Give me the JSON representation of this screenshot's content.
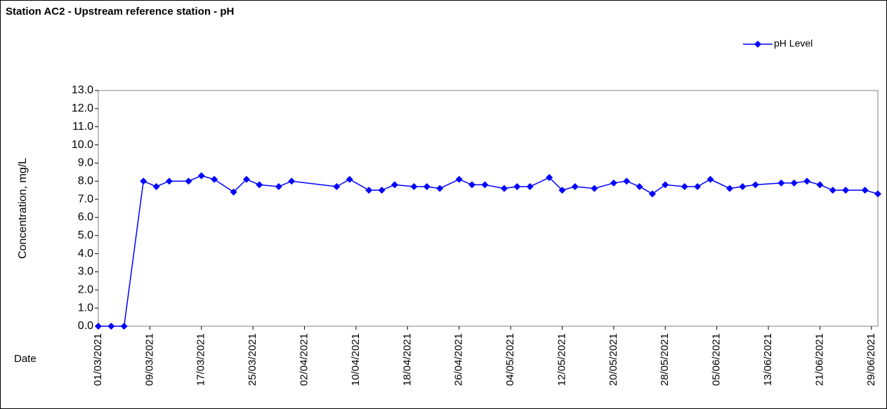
{
  "chart_data": {
    "type": "line",
    "title": "Station AC2 - Upstream reference station - pH",
    "x_label": "Date",
    "y_label": "Concentration, mg/L",
    "legend": "top-right",
    "series": [
      {
        "name": "pH Level",
        "color": "#0000ff",
        "values": [
          0,
          0,
          0,
          8.0,
          7.7,
          8.0,
          8.0,
          8.3,
          8.1,
          7.4,
          8.1,
          7.8,
          7.7,
          8.0,
          7.7,
          8.1,
          7.5,
          7.5,
          7.8,
          7.7,
          7.7,
          7.6,
          8.1,
          7.8,
          7.8,
          7.6,
          7.7,
          7.7,
          8.2,
          7.5,
          7.7,
          7.6,
          7.9,
          8.0,
          7.7,
          7.3,
          7.8,
          7.7,
          7.7,
          8.1,
          7.6,
          7.7,
          7.8,
          7.9,
          7.9,
          8.0,
          7.8,
          7.5,
          7.5,
          7.5,
          7.3
        ]
      }
    ],
    "x": [
      "01/03/2021",
      "03/03/2021",
      "05/03/2021",
      "08/03/2021",
      "10/03/2021",
      "12/03/2021",
      "15/03/2021",
      "17/03/2021",
      "19/03/2021",
      "22/03/2021",
      "24/03/2021",
      "26/03/2021",
      "29/03/2021",
      "31/03/2021",
      "07/04/2021",
      "09/04/2021",
      "12/04/2021",
      "14/04/2021",
      "16/04/2021",
      "19/04/2021",
      "21/04/2021",
      "23/04/2021",
      "26/04/2021",
      "28/04/2021",
      "30/04/2021",
      "03/05/2021",
      "05/05/2021",
      "07/05/2021",
      "10/05/2021",
      "12/05/2021",
      "14/05/2021",
      "17/05/2021",
      "20/05/2021",
      "22/05/2021",
      "24/05/2021",
      "26/05/2021",
      "28/05/2021",
      "31/05/2021",
      "02/06/2021",
      "04/06/2021",
      "07/06/2021",
      "09/06/2021",
      "11/06/2021",
      "15/06/2021",
      "17/06/2021",
      "19/06/2021",
      "21/06/2021",
      "23/06/2021",
      "25/06/2021",
      "28/06/2021",
      "30/06/2021"
    ],
    "xlim": [
      "01/03/2021",
      "30/06/2021"
    ],
    "xticks": [
      "01/03/2021",
      "09/03/2021",
      "17/03/2021",
      "25/03/2021",
      "02/04/2021",
      "10/04/2021",
      "18/04/2021",
      "26/04/2021",
      "04/05/2021",
      "12/05/2021",
      "20/05/2021",
      "28/05/2021",
      "05/06/2021",
      "13/06/2021",
      "21/06/2021",
      "29/06/2021"
    ],
    "ylim": [
      0,
      13
    ],
    "yticks": [
      {
        "value": 0,
        "label": "0.0"
      },
      {
        "value": 1,
        "label": "1.0"
      },
      {
        "value": 2,
        "label": "2.0"
      },
      {
        "value": 3,
        "label": "3.0"
      },
      {
        "value": 4,
        "label": "4.0"
      },
      {
        "value": 5,
        "label": "5.0"
      },
      {
        "value": 6,
        "label": "6.0"
      },
      {
        "value": 7,
        "label": "7.0"
      },
      {
        "value": 8,
        "label": "8.0"
      },
      {
        "value": 9,
        "label": "9.0"
      },
      {
        "value": 10,
        "label": "10.0"
      },
      {
        "value": 11,
        "label": "11.0"
      },
      {
        "value": 12,
        "label": "12.0"
      },
      {
        "value": 13,
        "label": "13.0"
      }
    ]
  }
}
